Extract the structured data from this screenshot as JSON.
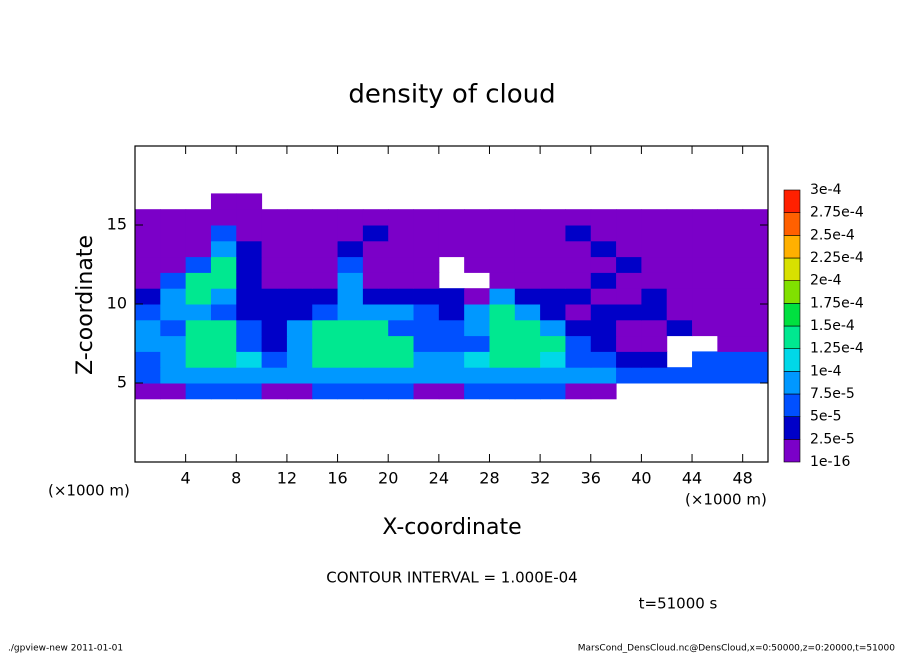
{
  "chart_data": {
    "type": "heatmap",
    "title": "density of cloud",
    "xlabel": "X-coordinate",
    "ylabel": "Z-coordinate",
    "xunit": "(×1000 m)",
    "yunit": "(×1000 m)",
    "xlim": [
      0,
      50
    ],
    "ylim": [
      0,
      20
    ],
    "xticks": [
      4,
      8,
      12,
      16,
      20,
      24,
      28,
      32,
      36,
      40,
      44,
      48
    ],
    "yticks": [
      5,
      10,
      15
    ],
    "x": [
      1,
      3,
      5,
      7,
      9,
      11,
      13,
      15,
      17,
      19,
      21,
      23,
      25,
      27,
      29,
      31,
      33,
      35,
      37,
      39,
      41,
      43,
      45,
      47,
      49
    ],
    "y": [
      4.5,
      5.5,
      6.5,
      7.5,
      8.5,
      9.5,
      10.5,
      11.5,
      12.5,
      13.5,
      14.5,
      15.5,
      16.5
    ],
    "values": [
      [
        1e-05,
        1e-05,
        6e-05,
        6e-05,
        6e-05,
        1e-05,
        1e-05,
        6e-05,
        6e-05,
        6e-05,
        6e-05,
        1e-05,
        1e-05,
        6e-05,
        6e-05,
        6e-05,
        6e-05,
        1e-05,
        1e-05,
        null,
        null,
        null,
        null,
        null,
        null
      ],
      [
        6e-05,
        9e-05,
        9e-05,
        9e-05,
        9e-05,
        9e-05,
        9e-05,
        9e-05,
        9e-05,
        9e-05,
        9e-05,
        9e-05,
        9e-05,
        9e-05,
        9e-05,
        9e-05,
        9e-05,
        9e-05,
        9e-05,
        6e-05,
        6e-05,
        6e-05,
        6e-05,
        6e-05,
        6e-05
      ],
      [
        6e-05,
        9e-05,
        0.00014,
        0.00014,
        0.00011,
        6e-05,
        9e-05,
        0.00014,
        0.00014,
        0.00014,
        0.00014,
        9e-05,
        9e-05,
        0.00011,
        0.00014,
        0.00014,
        0.00011,
        6e-05,
        6e-05,
        3.5e-05,
        3.5e-05,
        null,
        6e-05,
        6e-05,
        6e-05
      ],
      [
        9e-05,
        9e-05,
        0.00014,
        0.00014,
        6e-05,
        3.5e-05,
        9e-05,
        0.00014,
        0.00014,
        0.00014,
        0.00014,
        6e-05,
        6e-05,
        6e-05,
        0.00014,
        0.00014,
        0.00014,
        6e-05,
        3.5e-05,
        1e-05,
        1e-05,
        null,
        null,
        1e-05,
        1e-05
      ],
      [
        9e-05,
        6e-05,
        0.00014,
        0.00014,
        6e-05,
        3.5e-05,
        9e-05,
        0.00014,
        0.00014,
        0.00014,
        6e-05,
        6e-05,
        6e-05,
        9e-05,
        0.00014,
        0.00014,
        9e-05,
        3.5e-05,
        3.5e-05,
        1e-05,
        1e-05,
        3.5e-05,
        1e-05,
        1e-05,
        1e-05
      ],
      [
        6e-05,
        9e-05,
        9e-05,
        6e-05,
        3.5e-05,
        3.5e-05,
        3.5e-05,
        6e-05,
        9e-05,
        9e-05,
        9e-05,
        6e-05,
        3.5e-05,
        9e-05,
        0.00014,
        9e-05,
        3.5e-05,
        1e-05,
        3.5e-05,
        3.5e-05,
        3.5e-05,
        1e-05,
        1e-05,
        1e-05,
        1e-05
      ],
      [
        3.5e-05,
        9e-05,
        0.00014,
        9e-05,
        3.5e-05,
        3.5e-05,
        3.5e-05,
        3.5e-05,
        9e-05,
        3.5e-05,
        3.5e-05,
        3.5e-05,
        3.5e-05,
        1e-05,
        9e-05,
        3.5e-05,
        3.5e-05,
        3.5e-05,
        1e-05,
        1e-05,
        3.5e-05,
        1e-05,
        1e-05,
        1e-05,
        1e-05
      ],
      [
        1e-05,
        6e-05,
        0.00014,
        0.00014,
        3.5e-05,
        1e-05,
        1e-05,
        1e-05,
        9e-05,
        1e-05,
        1e-05,
        1e-05,
        null,
        null,
        1e-05,
        1e-05,
        1e-05,
        1e-05,
        3.5e-05,
        1e-05,
        1e-05,
        1e-05,
        1e-05,
        1e-05,
        1e-05
      ],
      [
        1e-05,
        1e-05,
        6e-05,
        0.00014,
        3.5e-05,
        1e-05,
        1e-05,
        1e-05,
        6e-05,
        1e-05,
        1e-05,
        1e-05,
        null,
        1e-05,
        1e-05,
        1e-05,
        1e-05,
        1e-05,
        1e-05,
        3.5e-05,
        1e-05,
        1e-05,
        1e-05,
        1e-05,
        1e-05
      ],
      [
        1e-05,
        1e-05,
        1e-05,
        9e-05,
        3.5e-05,
        1e-05,
        1e-05,
        1e-05,
        3.5e-05,
        1e-05,
        1e-05,
        1e-05,
        1e-05,
        1e-05,
        1e-05,
        1e-05,
        1e-05,
        1e-05,
        3.5e-05,
        1e-05,
        1e-05,
        1e-05,
        1e-05,
        1e-05,
        1e-05
      ],
      [
        1e-05,
        1e-05,
        1e-05,
        6e-05,
        1e-05,
        1e-05,
        1e-05,
        1e-05,
        1e-05,
        3.5e-05,
        1e-05,
        1e-05,
        1e-05,
        1e-05,
        1e-05,
        1e-05,
        1e-05,
        3.5e-05,
        1e-05,
        1e-05,
        1e-05,
        1e-05,
        1e-05,
        1e-05,
        1e-05
      ],
      [
        1e-05,
        1e-05,
        1e-05,
        1e-05,
        1e-05,
        1e-05,
        1e-05,
        1e-05,
        1e-05,
        1e-05,
        1e-05,
        1e-05,
        1e-05,
        1e-05,
        1e-05,
        1e-05,
        1e-05,
        1e-05,
        1e-05,
        1e-05,
        1e-05,
        1e-05,
        1e-05,
        1e-05,
        1e-05
      ],
      [
        null,
        null,
        null,
        1e-05,
        1e-05,
        null,
        null,
        null,
        null,
        null,
        null,
        null,
        null,
        null,
        null,
        null,
        null,
        null,
        null,
        null,
        null,
        null,
        null,
        null,
        null
      ]
    ],
    "levels": [
      {
        "value": 1e-16,
        "label": "1e-16"
      },
      {
        "value": 2.5e-05,
        "label": "2.5e-5"
      },
      {
        "value": 5e-05,
        "label": "5e-5"
      },
      {
        "value": 7.5e-05,
        "label": "7.5e-5"
      },
      {
        "value": 0.0001,
        "label": "1e-4"
      },
      {
        "value": 0.000125,
        "label": "1.25e-4"
      },
      {
        "value": 0.00015,
        "label": "1.5e-4"
      },
      {
        "value": 0.000175,
        "label": "1.75e-4"
      },
      {
        "value": 0.0002,
        "label": "2e-4"
      },
      {
        "value": 0.000225,
        "label": "2.25e-4"
      },
      {
        "value": 0.00025,
        "label": "2.5e-4"
      },
      {
        "value": 0.000275,
        "label": "2.75e-4"
      },
      {
        "value": 0.0003,
        "label": "3e-4"
      }
    ],
    "colors": [
      "#7b00c8",
      "#0000c8",
      "#0050ff",
      "#0098ff",
      "#00d8e8",
      "#00e890",
      "#00e040",
      "#80e000",
      "#d8e000",
      "#ffb000",
      "#ff6000",
      "#ff2000"
    ],
    "contour_note": "CONTOUR INTERVAL = 1.000E-04",
    "time_note": "t=51000 s",
    "footer_left": "./gpview-new  2011-01-01",
    "footer_right": "MarsCond_DensCloud.nc@DensCloud,x=0:50000,z=0:20000,t=51000"
  }
}
